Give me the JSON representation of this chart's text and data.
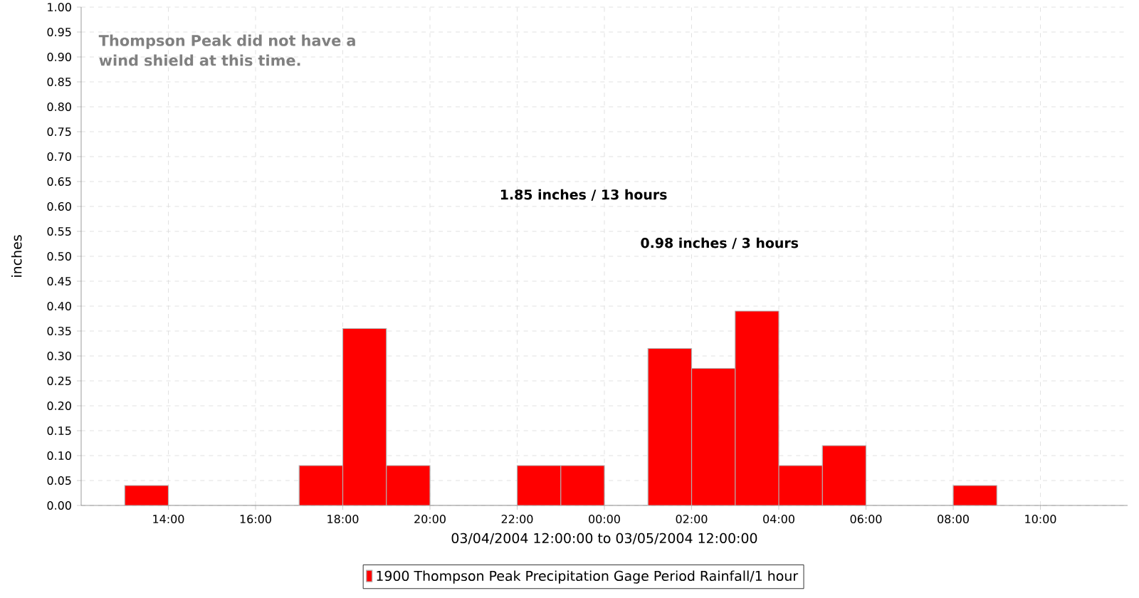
{
  "chart_data": {
    "type": "histogram",
    "xlabel": "03/04/2004 12:00:00 to 03/05/2004 12:00:00",
    "ylabel": "inches",
    "bins": [
      "2004-03-04T13:00",
      "2004-03-04T14:00",
      "2004-03-04T15:00",
      "2004-03-04T16:00",
      "2004-03-04T17:00",
      "2004-03-04T18:00",
      "2004-03-04T19:00",
      "2004-03-04T20:00",
      "2004-03-04T21:00",
      "2004-03-04T22:00",
      "2004-03-04T23:00",
      "2004-03-05T00:00",
      "2004-03-05T01:00",
      "2004-03-05T02:00",
      "2004-03-05T03:00",
      "2004-03-05T04:00",
      "2004-03-05T05:00",
      "2004-03-05T06:00",
      "2004-03-05T07:00",
      "2004-03-05T08:00",
      "2004-03-05T09:00"
    ],
    "series": [
      {
        "name": "1900 Thompson Peak Precipitation Gage Period Rainfall/1 hour",
        "color": "#ff0000",
        "values": [
          0.04,
          0,
          0,
          0,
          0.08,
          0.355,
          0.08,
          0,
          0,
          0.08,
          0.08,
          0,
          0.315,
          0.275,
          0.39,
          0.08,
          0.12,
          0,
          0,
          0.04
        ]
      }
    ],
    "xlim": [
      "2004-03-04T12:00",
      "2004-03-05T12:00"
    ],
    "xticks": [
      {
        "value": "2004-03-04T14:00",
        "label": "14:00"
      },
      {
        "value": "2004-03-04T16:00",
        "label": "16:00"
      },
      {
        "value": "2004-03-04T18:00",
        "label": "18:00"
      },
      {
        "value": "2004-03-04T20:00",
        "label": "20:00"
      },
      {
        "value": "2004-03-04T22:00",
        "label": "22:00"
      },
      {
        "value": "2004-03-05T00:00",
        "label": "00:00"
      },
      {
        "value": "2004-03-05T02:00",
        "label": "02:00"
      },
      {
        "value": "2004-03-05T04:00",
        "label": "04:00"
      },
      {
        "value": "2004-03-05T06:00",
        "label": "06:00"
      },
      {
        "value": "2004-03-05T08:00",
        "label": "08:00"
      },
      {
        "value": "2004-03-05T10:00",
        "label": "10:00"
      }
    ],
    "ylim": [
      0,
      1
    ],
    "yticks": [
      {
        "value": 0,
        "label": "0.00"
      },
      {
        "value": 0.05,
        "label": "0.05"
      },
      {
        "value": 0.1,
        "label": "0.10"
      },
      {
        "value": 0.15,
        "label": "0.15"
      },
      {
        "value": 0.2,
        "label": "0.20"
      },
      {
        "value": 0.25,
        "label": "0.25"
      },
      {
        "value": 0.3,
        "label": "0.30"
      },
      {
        "value": 0.35,
        "label": "0.35"
      },
      {
        "value": 0.4,
        "label": "0.40"
      },
      {
        "value": 0.45,
        "label": "0.45"
      },
      {
        "value": 0.5,
        "label": "0.50"
      },
      {
        "value": 0.55,
        "label": "0.55"
      },
      {
        "value": 0.6,
        "label": "0.60"
      },
      {
        "value": 0.65,
        "label": "0.65"
      },
      {
        "value": 0.7,
        "label": "0.70"
      },
      {
        "value": 0.75,
        "label": "0.75"
      },
      {
        "value": 0.8,
        "label": "0.80"
      },
      {
        "value": 0.85,
        "label": "0.85"
      },
      {
        "value": 0.9,
        "label": "0.90"
      },
      {
        "value": 0.95,
        "label": "0.95"
      },
      {
        "value": 1,
        "label": "1.00"
      }
    ],
    "grid": true,
    "legend": "bottom",
    "annotations": [
      "Thompson Peak did not have a wind shield at this time.",
      "1.85 inches / 13 hours",
      "0.98 inches / 3 hours"
    ]
  }
}
